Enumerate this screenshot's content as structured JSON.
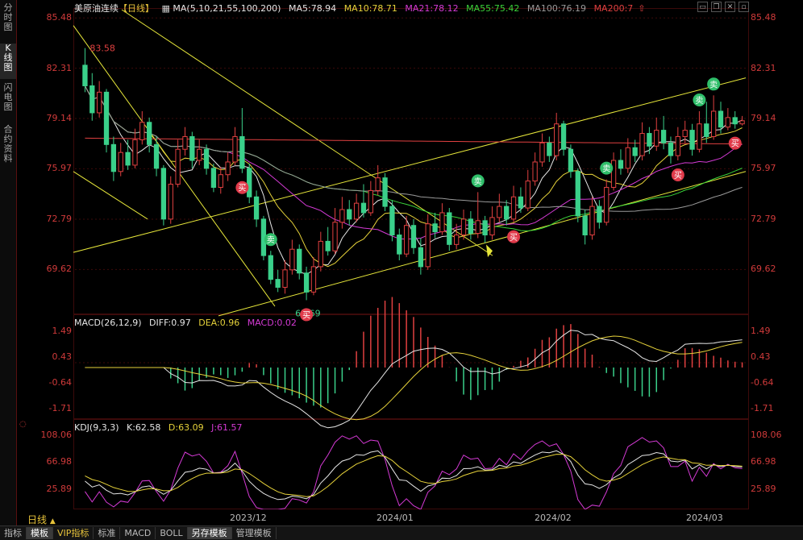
{
  "sidebar": {
    "tabs": [
      {
        "label": "分时图",
        "chars": [
          "分",
          "时",
          "图"
        ],
        "active": false
      },
      {
        "label": "K线图",
        "chars": [
          "K",
          "线",
          "图"
        ],
        "active": true
      },
      {
        "label": "闪电图",
        "chars": [
          "闪",
          "电",
          "图"
        ],
        "active": false
      },
      {
        "label": "合约资料",
        "chars": [
          "合",
          "约",
          "资",
          "料"
        ],
        "active": false
      }
    ]
  },
  "main": {
    "title": "美原油连续",
    "period": "【日线】",
    "ma_indicator": "MA(5,10,21,55,100,200)",
    "ma_values": [
      {
        "label": "MA5:78.94",
        "color": "#e6e6e6"
      },
      {
        "label": "MA10:78.71",
        "color": "#e6d23a"
      },
      {
        "label": "MA21:78.12",
        "color": "#d53ad5"
      },
      {
        "label": "MA55:75.42",
        "color": "#3ad53a"
      },
      {
        "label": "MA100:76.19",
        "color": "#9a9a9a"
      },
      {
        "label": "MA200:7",
        "color": "#e04040"
      }
    ],
    "price_ticks": [
      "85.48",
      "82.31",
      "79.14",
      "75.97",
      "72.79",
      "69.62"
    ],
    "high_label": "83.58",
    "low_label": "67.69",
    "high_marker": "3",
    "buy_label": "买",
    "sell_label": "卖"
  },
  "macd": {
    "title": "MACD(26,12,9)",
    "diff": "DIFF:0.97",
    "dea": "DEA:0.96",
    "macd": "MACD:0.02",
    "ticks": [
      "1.49",
      "0.43",
      "-0.64",
      "-1.71"
    ]
  },
  "kdj": {
    "title": "KDJ(9,3,3)",
    "k": "K:62.58",
    "d": "D:63.09",
    "j": "J:61.57",
    "ticks": [
      "108.06",
      "66.98",
      "25.89"
    ]
  },
  "dates": [
    "2023/12",
    "2024/01",
    "2024/02",
    "2024/03"
  ],
  "period_button": "日线",
  "period_arrow": "▲",
  "bottom_tabs": [
    {
      "label": "指标",
      "active": false
    },
    {
      "label": "模板",
      "active": true
    },
    {
      "label": "VIP指标",
      "active": false,
      "color": "#e6c23a"
    },
    {
      "label": "标准",
      "active": false
    },
    {
      "label": "MACD",
      "active": false
    },
    {
      "label": "BOLL",
      "active": false
    },
    {
      "label": "另存模板",
      "active": true
    },
    {
      "label": "管理模板",
      "active": false
    }
  ],
  "colors": {
    "up": "#e04040",
    "down": "#3ad08a",
    "axis": "#d03a3a",
    "grid": "#3d0a0a",
    "trendline": "#e6e63a"
  },
  "chart_data": {
    "type": "candlestick",
    "title": "美原油连续",
    "ylim": [
      67.0,
      86.0
    ],
    "candles": [
      [
        82.5,
        81.2,
        83.58,
        80.8
      ],
      [
        81.2,
        79.5,
        82.0,
        79.0
      ],
      [
        79.5,
        80.8,
        81.5,
        79.2
      ],
      [
        80.8,
        77.5,
        81.0,
        77.0
      ],
      [
        77.5,
        75.8,
        78.0,
        75.2
      ],
      [
        75.8,
        77.0,
        77.6,
        75.5
      ],
      [
        77.0,
        76.2,
        77.8,
        75.9
      ],
      [
        76.2,
        77.8,
        78.5,
        76.0
      ],
      [
        77.8,
        78.9,
        79.6,
        77.5
      ],
      [
        78.9,
        77.5,
        79.2,
        77.0
      ],
      [
        77.5,
        76.0,
        78.0,
        75.5
      ],
      [
        76.0,
        72.8,
        76.2,
        72.4
      ],
      [
        72.8,
        75.0,
        75.5,
        72.5
      ],
      [
        75.0,
        77.2,
        77.8,
        74.8
      ],
      [
        77.2,
        78.0,
        78.6,
        76.8
      ],
      [
        78.0,
        76.5,
        78.3,
        76.0
      ],
      [
        76.5,
        77.2,
        77.8,
        76.2
      ],
      [
        77.2,
        76.0,
        77.5,
        75.6
      ],
      [
        76.0,
        74.8,
        76.3,
        74.5
      ],
      [
        74.8,
        75.6,
        76.1,
        74.4
      ],
      [
        75.6,
        76.4,
        77.0,
        75.2
      ],
      [
        76.4,
        78.0,
        78.6,
        76.2
      ],
      [
        78.0,
        76.0,
        79.8,
        75.7
      ],
      [
        76.0,
        74.2,
        76.3,
        73.8
      ],
      [
        74.2,
        72.8,
        74.6,
        72.3
      ],
      [
        72.8,
        70.5,
        73.0,
        70.2
      ],
      [
        70.5,
        69.0,
        70.8,
        68.7
      ],
      [
        69.0,
        68.5,
        69.6,
        68.2
      ],
      [
        68.5,
        69.6,
        70.2,
        68.1
      ],
      [
        69.6,
        70.9,
        71.5,
        69.3
      ],
      [
        70.9,
        69.4,
        71.2,
        69.0
      ],
      [
        69.4,
        68.2,
        69.8,
        67.69
      ],
      [
        68.2,
        69.8,
        70.4,
        68.0
      ],
      [
        69.8,
        71.4,
        72.0,
        69.5
      ],
      [
        71.4,
        70.8,
        72.3,
        70.5
      ],
      [
        70.8,
        72.6,
        73.5,
        70.6
      ],
      [
        72.6,
        73.4,
        74.2,
        72.2
      ],
      [
        73.4,
        72.8,
        74.0,
        72.4
      ],
      [
        72.8,
        73.8,
        74.4,
        72.6
      ],
      [
        73.8,
        73.2,
        75.0,
        72.9
      ],
      [
        73.2,
        74.6,
        75.2,
        73.0
      ],
      [
        74.6,
        75.4,
        76.2,
        74.3
      ],
      [
        75.4,
        73.6,
        75.7,
        73.3
      ],
      [
        73.6,
        71.8,
        74.0,
        71.4
      ],
      [
        71.8,
        70.6,
        72.2,
        70.2
      ],
      [
        70.6,
        72.4,
        73.0,
        70.4
      ],
      [
        72.4,
        71.0,
        72.8,
        70.6
      ],
      [
        71.0,
        69.8,
        71.6,
        69.3
      ],
      [
        69.8,
        72.5,
        73.1,
        69.6
      ],
      [
        72.5,
        72.0,
        73.2,
        71.6
      ],
      [
        72.0,
        73.2,
        73.8,
        71.8
      ],
      [
        73.2,
        71.2,
        73.5,
        70.8
      ],
      [
        71.2,
        71.8,
        72.5,
        70.9
      ],
      [
        71.8,
        72.8,
        73.4,
        71.5
      ],
      [
        72.8,
        71.9,
        73.3,
        71.5
      ],
      [
        71.9,
        72.7,
        74.5,
        71.6
      ],
      [
        72.7,
        71.8,
        73.0,
        71.3
      ],
      [
        71.8,
        72.9,
        73.6,
        71.5
      ],
      [
        72.9,
        73.6,
        74.4,
        72.6
      ],
      [
        73.6,
        72.8,
        74.0,
        72.4
      ],
      [
        72.8,
        74.2,
        74.9,
        72.6
      ],
      [
        74.2,
        73.5,
        74.8,
        73.2
      ],
      [
        73.5,
        75.2,
        75.9,
        73.3
      ],
      [
        75.2,
        76.4,
        77.0,
        74.9
      ],
      [
        76.4,
        77.6,
        78.2,
        76.1
      ],
      [
        77.6,
        76.8,
        78.0,
        76.4
      ],
      [
        76.8,
        78.8,
        79.5,
        76.5
      ],
      [
        78.8,
        77.2,
        79.0,
        76.8
      ],
      [
        77.2,
        75.8,
        77.5,
        75.4
      ],
      [
        75.8,
        73.0,
        76.0,
        72.6
      ],
      [
        73.0,
        71.8,
        73.4,
        71.2
      ],
      [
        71.8,
        73.6,
        74.2,
        71.5
      ],
      [
        73.6,
        72.6,
        74.0,
        72.2
      ],
      [
        72.6,
        74.8,
        75.3,
        72.4
      ],
      [
        74.8,
        76.5,
        77.0,
        74.6
      ],
      [
        76.5,
        76.0,
        77.2,
        75.6
      ],
      [
        76.0,
        77.3,
        77.9,
        75.7
      ],
      [
        77.3,
        76.8,
        77.8,
        76.4
      ],
      [
        76.8,
        78.2,
        78.9,
        76.5
      ],
      [
        78.2,
        77.4,
        78.6,
        76.9
      ],
      [
        77.4,
        78.4,
        79.2,
        77.1
      ],
      [
        78.4,
        77.6,
        79.3,
        77.2
      ],
      [
        77.6,
        76.8,
        78.0,
        76.3
      ],
      [
        76.8,
        78.0,
        78.6,
        76.5
      ],
      [
        78.0,
        78.4,
        79.0,
        77.6
      ],
      [
        78.4,
        77.2,
        78.8,
        76.8
      ],
      [
        77.2,
        78.8,
        79.6,
        77.0
      ],
      [
        78.8,
        78.0,
        80.2,
        77.6
      ],
      [
        78.0,
        79.6,
        80.6,
        77.8
      ],
      [
        79.6,
        78.6,
        80.2,
        78.2
      ],
      [
        78.6,
        79.2,
        79.8,
        78.4
      ],
      [
        79.2,
        78.8,
        79.6,
        78.5
      ],
      [
        78.8,
        79.0,
        79.3,
        78.7
      ]
    ],
    "buy_signals": [
      22,
      31,
      60,
      83,
      91
    ],
    "sell_signals": [
      26,
      55,
      73,
      86,
      88
    ]
  }
}
